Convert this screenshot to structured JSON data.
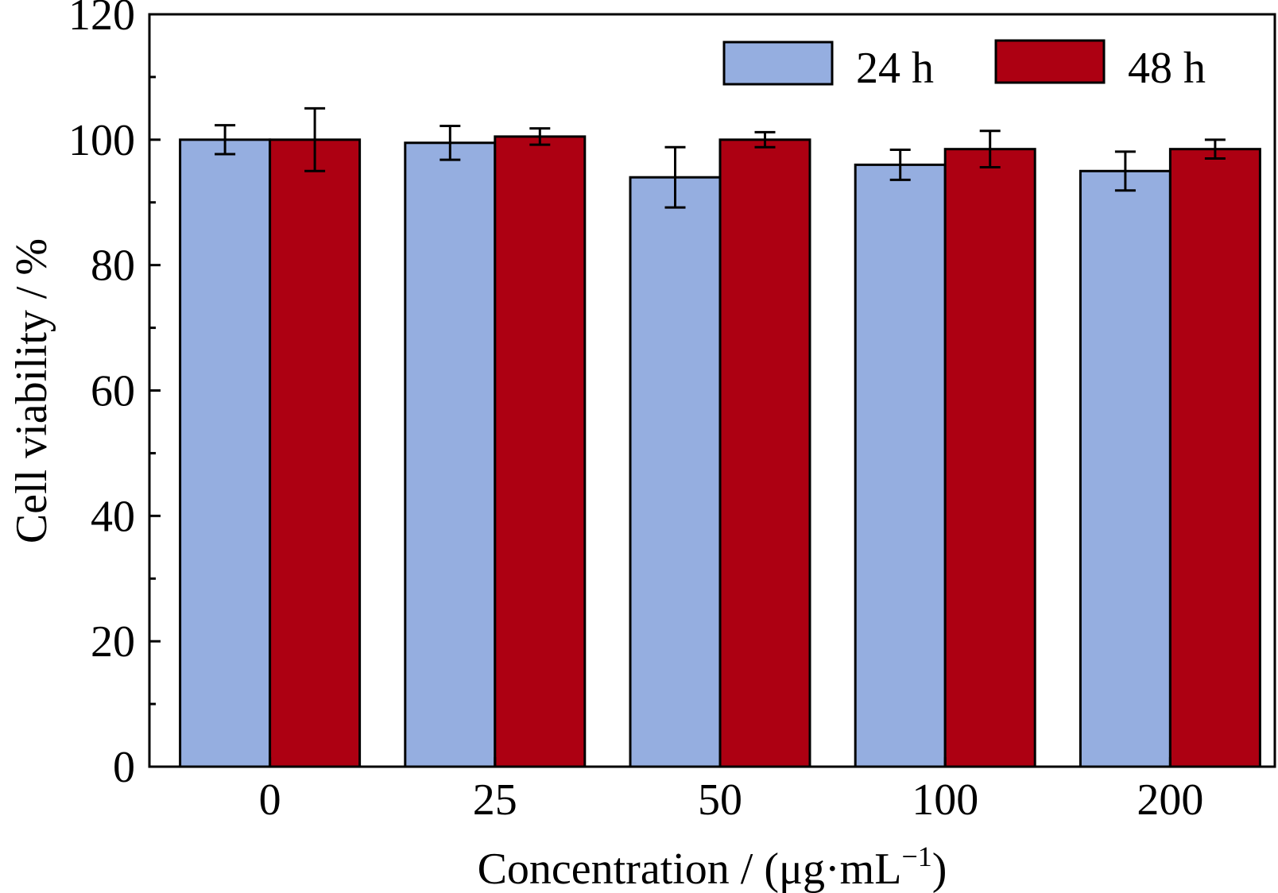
{
  "chart_data": {
    "type": "bar",
    "xlabel": "Concentration / (μg·mL",
    "xlabel_sup": "−1",
    "xlabel_end": ")",
    "ylabel": "Cell viability / %",
    "ylim": [
      0,
      120
    ],
    "y_ticks": [
      0,
      20,
      40,
      60,
      80,
      100,
      120
    ],
    "categories": [
      "0",
      "25",
      "50",
      "100",
      "200"
    ],
    "legend_position": "top-right",
    "grid": false,
    "series": [
      {
        "name": "24 h",
        "color": "#95aee0",
        "values": [
          100,
          99.5,
          94,
          96,
          95
        ],
        "errors": [
          2.3,
          2.7,
          4.8,
          2.4,
          3.1
        ]
      },
      {
        "name": "48 h",
        "color": "#ad0012",
        "values": [
          100,
          100.5,
          100,
          98.5,
          98.5
        ],
        "errors": [
          5.0,
          1.3,
          1.2,
          2.9,
          1.5
        ]
      }
    ]
  }
}
